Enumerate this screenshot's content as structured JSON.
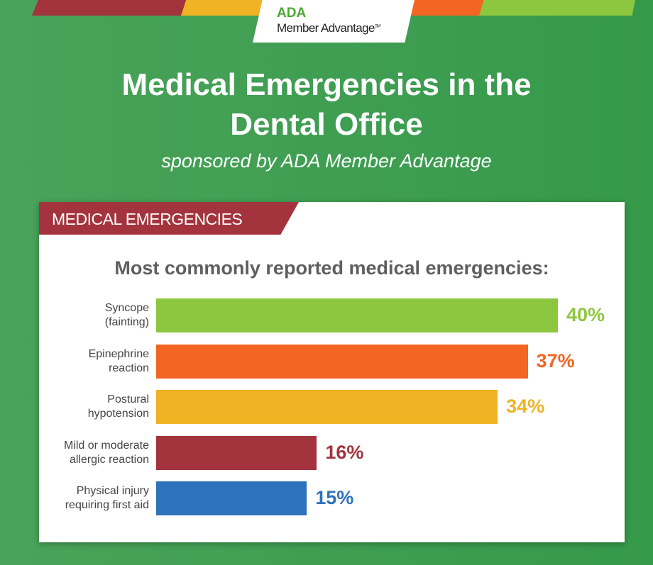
{
  "logo": {
    "line1": "ADA",
    "line2": "Member Advantage",
    "mark": "SM"
  },
  "header": {
    "title_line1": "Medical Emergencies in the",
    "title_line2": "Dental Office",
    "subtitle": "sponsored by ADA Member Advantage"
  },
  "colors": {
    "background": "#3fa052",
    "red": "#a3343d",
    "yellow": "#efb324",
    "orange": "#f26523",
    "green": "#8dc63f",
    "blue": "#2e72bb"
  },
  "section": {
    "label": "MEDICAL EMERGENCIES"
  },
  "chart_data": {
    "type": "bar",
    "orientation": "horizontal",
    "title": "Most commonly reported medical emergencies:",
    "categories": [
      [
        "Syncope",
        "(fainting)"
      ],
      [
        "Epinephrine",
        "reaction"
      ],
      [
        "Postural",
        "hypotension"
      ],
      [
        "Mild or moderate",
        "allergic reaction"
      ],
      [
        "Physical injury",
        "requiring first aid"
      ]
    ],
    "values": [
      40,
      37,
      34,
      16,
      15
    ],
    "labels": [
      "40%",
      "37%",
      "34%",
      "16%",
      "15%"
    ],
    "bar_colors": [
      "#8dc63f",
      "#f26523",
      "#efb324",
      "#a3343d",
      "#2e72bb"
    ],
    "grid": false,
    "xlim": [
      0,
      40
    ]
  }
}
